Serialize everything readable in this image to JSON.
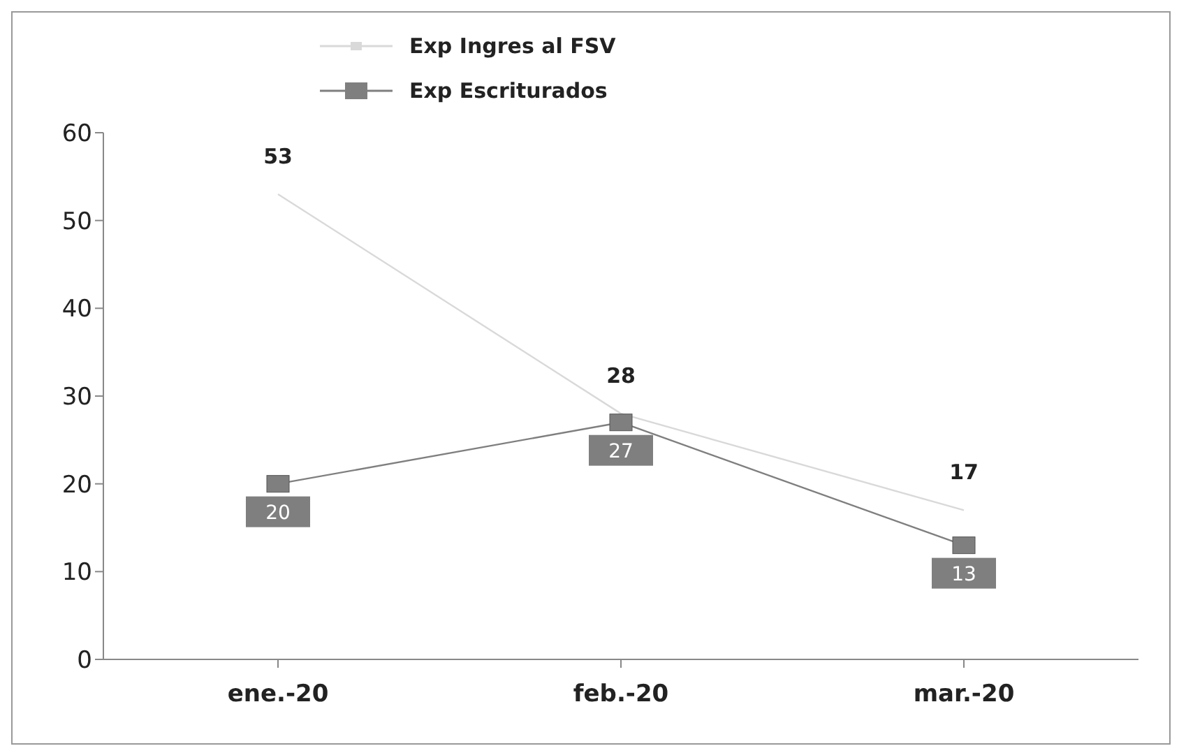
{
  "chart_data": {
    "type": "line",
    "categories": [
      "ene.-20",
      "feb.-20",
      "mar.-20"
    ],
    "series": [
      {
        "name": "Exp Ingres al FSV",
        "color": "#d9d9d9",
        "values": [
          53,
          28,
          17
        ],
        "marker": "none"
      },
      {
        "name": "Exp Escriturados",
        "color": "#7f7f7f",
        "values": [
          20,
          27,
          13
        ],
        "marker": "square"
      }
    ],
    "ylim": [
      0,
      60
    ],
    "yticks": [
      0,
      10,
      20,
      30,
      40,
      50,
      60
    ],
    "grid": false,
    "legend": "top",
    "data_labels": true
  }
}
